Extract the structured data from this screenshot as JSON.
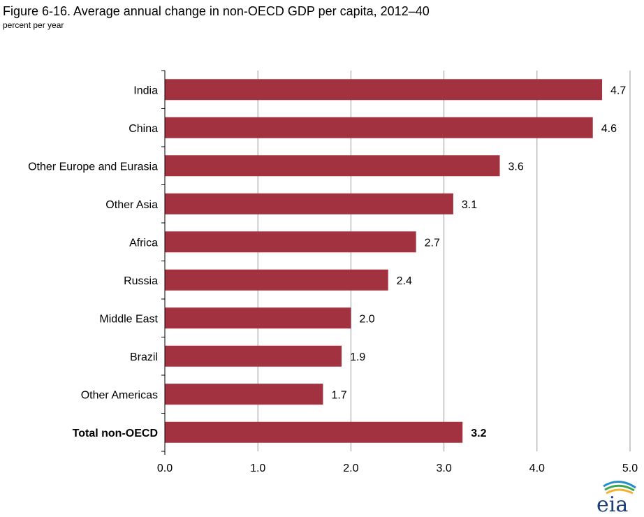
{
  "figure": {
    "title": "Figure 6-16. Average annual change in non-OECD GDP per capita, 2012–40",
    "subtitle": "percent per year"
  },
  "chart_data": {
    "type": "bar",
    "orientation": "horizontal",
    "categories": [
      "India",
      "China",
      "Other Europe and Eurasia",
      "Other Asia",
      "Africa",
      "Russia",
      "Middle East",
      "Brazil",
      "Other Americas",
      "Total non-OECD"
    ],
    "values": [
      4.7,
      4.6,
      3.6,
      3.1,
      2.7,
      2.4,
      2.0,
      1.9,
      1.7,
      3.2
    ],
    "value_labels": [
      "4.7",
      "4.6",
      "3.6",
      "3.1",
      "2.7",
      "2.4",
      "2.0",
      "1.9",
      "1.7",
      "3.2"
    ],
    "bold_categories": [
      "Total non-OECD"
    ],
    "xlim": [
      0,
      5
    ],
    "xticks": [
      0,
      1,
      2,
      3,
      4,
      5
    ],
    "xtick_labels": [
      "0.0",
      "1.0",
      "2.0",
      "3.0",
      "4.0",
      "5.0"
    ],
    "grid": "vertical",
    "bar_color": "#a33240",
    "grid_color": "#9a9a9a"
  },
  "logo": {
    "text": "eia"
  }
}
